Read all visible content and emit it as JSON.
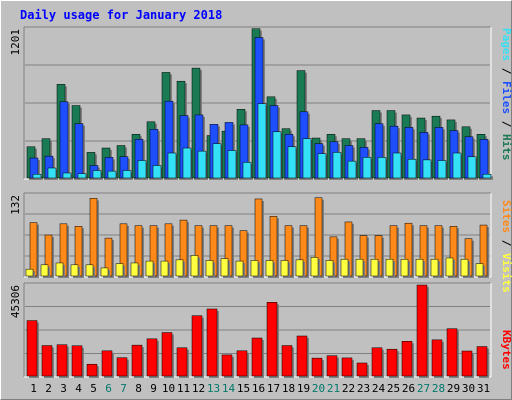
{
  "title": "Daily usage for January 2018",
  "colors": {
    "hits": "#1a7a54",
    "files": "#1e4fff",
    "pages": "#33e0f5",
    "visits": "#ffff40",
    "sites": "#ff8a1a",
    "kbytes": "#ff0000",
    "weekend_day": "#00796b",
    "weekday_day": "#000000",
    "panel_bg": "#c0c0c0"
  },
  "legend": {
    "top": [
      {
        "text": "Pages",
        "color": "#33e0f5"
      },
      {
        "text": " / ",
        "color": "#000000"
      },
      {
        "text": "Files",
        "color": "#1e4fff"
      },
      {
        "text": " / ",
        "color": "#000000"
      },
      {
        "text": "Hits",
        "color": "#1a7a54"
      }
    ],
    "middle": [
      {
        "text": "Sites",
        "color": "#ff8a1a"
      },
      {
        "text": " / ",
        "color": "#000000"
      },
      {
        "text": "Visits",
        "color": "#ffff40"
      }
    ],
    "bottom": [
      {
        "text": "KBytes",
        "color": "#ff0000"
      }
    ]
  },
  "chart_data": [
    {
      "type": "bar",
      "panel": "top",
      "ymax_label": "1201",
      "ylim": [
        0,
        1201
      ],
      "grid": true,
      "x": [
        "1",
        "2",
        "3",
        "4",
        "5",
        "6",
        "7",
        "8",
        "9",
        "10",
        "11",
        "12",
        "13",
        "14",
        "15",
        "16",
        "17",
        "18",
        "19",
        "20",
        "21",
        "22",
        "23",
        "24",
        "25",
        "26",
        "27",
        "28",
        "29",
        "30",
        "31"
      ],
      "weekend": [
        "6",
        "7",
        "13",
        "14",
        "20",
        "21",
        "27",
        "28"
      ],
      "series": [
        {
          "name": "Hits",
          "values": [
            250,
            315,
            750,
            580,
            205,
            240,
            260,
            350,
            450,
            845,
            775,
            880,
            340,
            375,
            550,
            1195,
            650,
            395,
            860,
            320,
            350,
            315,
            315,
            540,
            540,
            505,
            480,
            495,
            465,
            410,
            350
          ]
        },
        {
          "name": "Files",
          "values": [
            160,
            175,
            610,
            435,
            100,
            165,
            170,
            310,
            390,
            615,
            500,
            505,
            430,
            445,
            425,
            1125,
            580,
            350,
            530,
            275,
            290,
            260,
            245,
            435,
            415,
            405,
            365,
            405,
            380,
            330,
            310
          ]
        },
        {
          "name": "Pages",
          "values": [
            30,
            80,
            40,
            35,
            60,
            55,
            60,
            140,
            100,
            200,
            240,
            215,
            275,
            220,
            125,
            595,
            370,
            250,
            315,
            195,
            205,
            135,
            165,
            165,
            200,
            150,
            145,
            140,
            200,
            170,
            30
          ]
        }
      ]
    },
    {
      "type": "bar",
      "panel": "middle",
      "ymax_label": "132",
      "ylim": [
        0,
        132
      ],
      "grid": true,
      "x": [
        "1",
        "2",
        "3",
        "4",
        "5",
        "6",
        "7",
        "8",
        "9",
        "10",
        "11",
        "12",
        "13",
        "14",
        "15",
        "16",
        "17",
        "18",
        "19",
        "20",
        "21",
        "22",
        "23",
        "24",
        "25",
        "26",
        "27",
        "28",
        "29",
        "30",
        "31"
      ],
      "weekend": [
        "6",
        "7",
        "13",
        "14",
        "20",
        "21",
        "27",
        "28"
      ],
      "series": [
        {
          "name": "Sites",
          "values": [
            86,
            66,
            84,
            80,
            125,
            61,
            84,
            81,
            81,
            84,
            90,
            81,
            81,
            81,
            73,
            124,
            96,
            81,
            81,
            126,
            63,
            87,
            65,
            65,
            81,
            85,
            81,
            81,
            80,
            60,
            82
          ]
        },
        {
          "name": "Visits",
          "values": [
            11,
            18,
            21,
            18,
            18,
            13,
            20,
            21,
            24,
            24,
            26,
            33,
            25,
            28,
            24,
            25,
            25,
            25,
            26,
            30,
            25,
            27,
            27,
            27,
            27,
            27,
            27,
            27,
            29,
            27,
            20
          ]
        }
      ]
    },
    {
      "type": "bar",
      "panel": "bottom",
      "ymax_label": "45306",
      "ylim": [
        0,
        45306
      ],
      "grid": true,
      "x": [
        "1",
        "2",
        "3",
        "4",
        "5",
        "6",
        "7",
        "8",
        "9",
        "10",
        "11",
        "12",
        "13",
        "14",
        "15",
        "16",
        "17",
        "18",
        "19",
        "20",
        "21",
        "22",
        "23",
        "24",
        "25",
        "26",
        "27",
        "28",
        "29",
        "30",
        "31"
      ],
      "weekend": [
        "6",
        "7",
        "13",
        "14",
        "20",
        "21",
        "27",
        "28"
      ],
      "series": [
        {
          "name": "KBytes",
          "values": [
            27300,
            15000,
            15400,
            14900,
            5800,
            12400,
            9000,
            15200,
            18300,
            21400,
            13900,
            29700,
            33000,
            10400,
            12400,
            18700,
            36300,
            15000,
            19700,
            8800,
            10000,
            8900,
            6400,
            13900,
            13200,
            17100,
            44800,
            17800,
            23300,
            12300,
            14500
          ]
        }
      ]
    }
  ]
}
